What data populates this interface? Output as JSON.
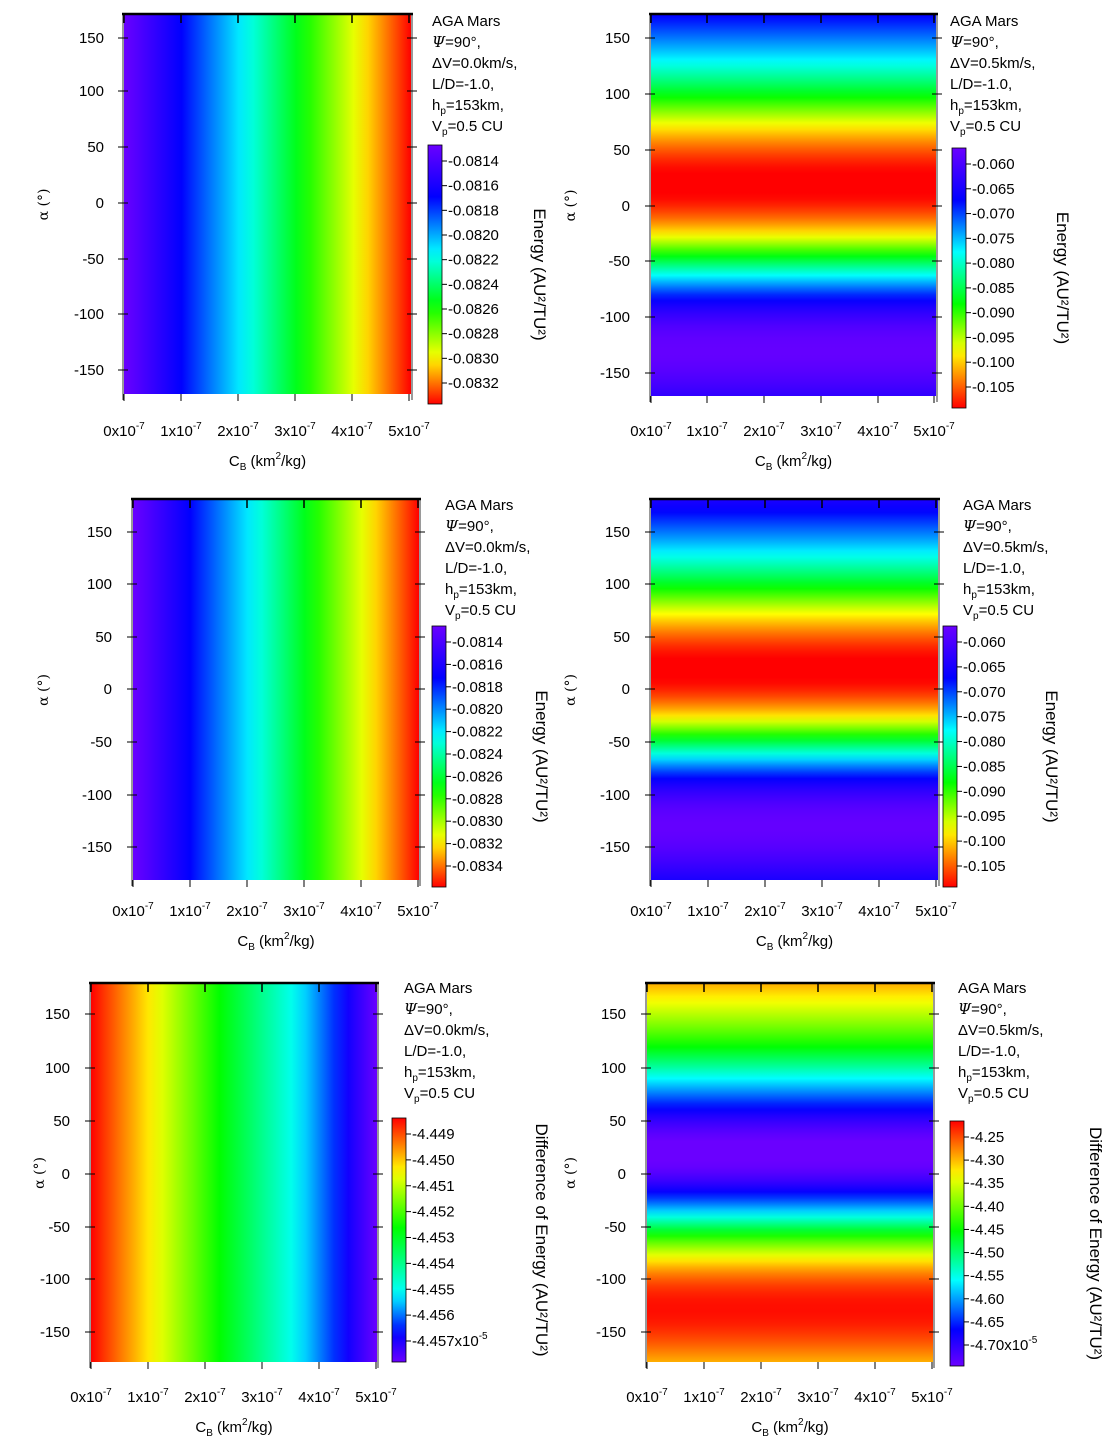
{
  "chart_data": [
    {
      "type": "heatmap",
      "vary": "x",
      "info": {
        "title": "AGA Mars",
        "psi": "=90°,",
        "dv": "ΔV=0.0km/s,",
        "ld": "L/D=-1.0,",
        "hp_base": "h",
        "hp_sub": "p",
        "hp_rest": "=153km,",
        "vp_base": "V",
        "vp_sub": "p",
        "vp_rest": "=0.5 CU"
      },
      "xticks": [
        "0x10",
        "1x10",
        "2x10",
        "3x10",
        "4x10",
        "5x10"
      ],
      "xtick_exp": "-7",
      "xlim": [
        0,
        5e-07
      ],
      "xlabel": {
        "pre": "C",
        "sub": "B",
        "mid": " (km",
        "sup": "2",
        "post": "/kg)"
      },
      "ylabel": "α (°)",
      "yticks": [
        150,
        100,
        50,
        0,
        -50,
        -100,
        -150
      ],
      "ylim": [
        -170,
        170
      ],
      "colorbar": {
        "ticks": [
          "-0.0814",
          "-0.0816",
          "-0.0818",
          "-0.0820",
          "-0.0822",
          "-0.0824",
          "-0.0826",
          "-0.0828",
          "-0.0830",
          "-0.0832"
        ],
        "label": "Energy (AU²/TU²)",
        "min": -0.08326,
        "max": -0.08128
      },
      "stops": [
        {
          "v": 0,
          "c": "#6a00ff"
        },
        {
          "v": 0.2,
          "c": "#0000ff"
        },
        {
          "v": 0.42,
          "c": "#00ffff"
        },
        {
          "v": 0.62,
          "c": "#00ff00"
        },
        {
          "v": 0.82,
          "c": "#ffff00"
        },
        {
          "v": 1,
          "c": "#ff0000"
        }
      ]
    },
    {
      "type": "heatmap",
      "vary": "y",
      "info": {
        "title": "AGA Mars",
        "psi": "=90°,",
        "dv": "ΔV=0.5km/s,",
        "ld": "L/D=-1.0,",
        "hp_base": "h",
        "hp_sub": "p",
        "hp_rest": "=153km,",
        "vp_base": "V",
        "vp_sub": "p",
        "vp_rest": "=0.5 CU"
      },
      "xticks": [
        "0x10",
        "1x10",
        "2x10",
        "3x10",
        "4x10",
        "5x10"
      ],
      "xtick_exp": "-7",
      "xlim": [
        0,
        5e-07
      ],
      "xlabel": {
        "pre": "C",
        "sub": "B",
        "mid": " (km",
        "sup": "2",
        "post": "/kg)"
      },
      "ylabel": "α (°)",
      "yticks": [
        150,
        100,
        50,
        0,
        -50,
        -100,
        -150
      ],
      "ylim": [
        -170,
        170
      ],
      "colorbar": {
        "ticks": [
          "-0.060",
          "-0.065",
          "-0.070",
          "-0.075",
          "-0.080",
          "-0.085",
          "-0.090",
          "-0.095",
          "-0.100",
          "-0.105"
        ],
        "label": "Energy (AU²/TU²)",
        "min": -0.1075,
        "max": -0.058
      },
      "stops": [
        {
          "v": 0,
          "c": "#6a00ff"
        },
        {
          "v": 0.2,
          "c": "#0000ff"
        },
        {
          "v": 0.4,
          "c": "#00ffff"
        },
        {
          "v": 0.6,
          "c": "#00ff00"
        },
        {
          "v": 0.78,
          "c": "#ffff00"
        },
        {
          "v": 1,
          "c": "#ff0000"
        }
      ]
    },
    {
      "type": "heatmap",
      "vary": "x",
      "info": {
        "title": "AGA Mars",
        "psi": "=90°,",
        "dv": "ΔV=0.0km/s,",
        "ld": "L/D=-1.0,",
        "hp_base": "h",
        "hp_sub": "p",
        "hp_rest": "=153km,",
        "vp_base": "V",
        "vp_sub": "p",
        "vp_rest": "=0.5 CU"
      },
      "xticks": [
        "0x10",
        "1x10",
        "2x10",
        "3x10",
        "4x10",
        "5x10"
      ],
      "xtick_exp": "-7",
      "xlim": [
        0,
        5e-07
      ],
      "xlabel": {
        "pre": "C",
        "sub": "B",
        "mid": " (km",
        "sup": "2",
        "post": "/kg)"
      },
      "ylabel": "α (°)",
      "yticks": [
        150,
        100,
        50,
        0,
        -50,
        -100,
        -150
      ],
      "ylim": [
        -180,
        180
      ],
      "colorbar": {
        "ticks": [
          "-0.0814",
          "-0.0816",
          "-0.0818",
          "-0.0820",
          "-0.0822",
          "-0.0824",
          "-0.0826",
          "-0.0828",
          "-0.0830",
          "-0.0832",
          "-0.0834"
        ],
        "label": "Energy (AU²/TU²)",
        "min": -0.08345,
        "max": -0.08128
      },
      "stops": [
        {
          "v": 0,
          "c": "#6a00ff"
        },
        {
          "v": 0.2,
          "c": "#0000ff"
        },
        {
          "v": 0.42,
          "c": "#00ffff"
        },
        {
          "v": 0.62,
          "c": "#00ff00"
        },
        {
          "v": 0.82,
          "c": "#ffff00"
        },
        {
          "v": 1,
          "c": "#ff0000"
        }
      ]
    },
    {
      "type": "heatmap",
      "vary": "y",
      "info": {
        "title": "AGA Mars",
        "psi": "=90°,",
        "dv": "ΔV=0.5km/s,",
        "ld": "L/D=-1.0,",
        "hp_base": "h",
        "hp_sub": "p",
        "hp_rest": "=153km,",
        "vp_base": "V",
        "vp_sub": "p",
        "vp_rest": "=0.5 CU"
      },
      "xticks": [
        "0x10",
        "1x10",
        "2x10",
        "3x10",
        "4x10",
        "5x10"
      ],
      "xtick_exp": "-7",
      "xlim": [
        0,
        5e-07
      ],
      "xlabel": {
        "pre": "C",
        "sub": "B",
        "mid": " (km",
        "sup": "2",
        "post": "/kg)"
      },
      "ylabel": "α (°)",
      "yticks": [
        150,
        100,
        50,
        0,
        -50,
        -100,
        -150
      ],
      "ylim": [
        -180,
        180
      ],
      "colorbar": {
        "ticks": [
          "-0.060",
          "-0.065",
          "-0.070",
          "-0.075",
          "-0.080",
          "-0.085",
          "-0.090",
          "-0.095",
          "-0.100",
          "-0.105"
        ],
        "label": "Energy (AU²/TU²)",
        "min": -0.1075,
        "max": -0.058
      },
      "stops": [
        {
          "v": 0,
          "c": "#6a00ff"
        },
        {
          "v": 0.2,
          "c": "#0000ff"
        },
        {
          "v": 0.4,
          "c": "#00ffff"
        },
        {
          "v": 0.6,
          "c": "#00ff00"
        },
        {
          "v": 0.78,
          "c": "#ffff00"
        },
        {
          "v": 1,
          "c": "#ff0000"
        }
      ]
    },
    {
      "type": "heatmap",
      "vary": "x",
      "info": {
        "title": "AGA Mars",
        "psi": "=90°,",
        "dv": "ΔV=0.0km/s,",
        "ld": "L/D=-1.0,",
        "hp_base": "h",
        "hp_sub": "p",
        "hp_rest": "=153km,",
        "vp_base": "V",
        "vp_sub": "p",
        "vp_rest": "=0.5 CU"
      },
      "xticks": [
        "0x10",
        "1x10",
        "2x10",
        "3x10",
        "4x10",
        "5x10"
      ],
      "xtick_exp": "-7",
      "xlim": [
        0,
        5e-07
      ],
      "xlabel": {
        "pre": "C",
        "sub": "B",
        "mid": " (km",
        "sup": "2",
        "post": "/kg)"
      },
      "ylabel": "α (°)",
      "yticks": [
        150,
        100,
        50,
        0,
        -50,
        -100,
        -150
      ],
      "ylim": [
        -180,
        180
      ],
      "colorbar": {
        "ticks": [
          "-4.449",
          "-4.450",
          "-4.451",
          "-4.452",
          "-4.453",
          "-4.454",
          "-4.455",
          "-4.456",
          "-4.457x10"
        ],
        "last_exp": "-5",
        "label": "Difference of Energy (AU²/TU²)",
        "min": -4.4575,
        "max": -4.4487
      },
      "stops": [
        {
          "v": 0,
          "c": "#ff0000"
        },
        {
          "v": 0.22,
          "c": "#ffff00"
        },
        {
          "v": 0.45,
          "c": "#00ff00"
        },
        {
          "v": 0.72,
          "c": "#00ffff"
        },
        {
          "v": 0.88,
          "c": "#0000ff"
        },
        {
          "v": 1,
          "c": "#6a00ff"
        }
      ]
    },
    {
      "type": "heatmap",
      "vary": "y",
      "info": {
        "title": "AGA Mars",
        "psi": "=90°,",
        "dv": "ΔV=0.5km/s,",
        "ld": "L/D=-1.0,",
        "hp_base": "h",
        "hp_sub": "p",
        "hp_rest": "=153km,",
        "vp_base": "V",
        "vp_sub": "p",
        "vp_rest": "=0.5 CU"
      },
      "xticks": [
        "0x10",
        "1x10",
        "2x10",
        "3x10",
        "4x10",
        "5x10"
      ],
      "xtick_exp": "-7",
      "xlim": [
        0,
        5e-07
      ],
      "xlabel": {
        "pre": "C",
        "sub": "B",
        "mid": " (km",
        "sup": "2",
        "post": "/kg)"
      },
      "ylabel": "α (°)",
      "yticks": [
        150,
        100,
        50,
        0,
        -50,
        -100,
        -150
      ],
      "ylim": [
        -180,
        180
      ],
      "colorbar": {
        "ticks": [
          "-4.25",
          "-4.30",
          "-4.35",
          "-4.40",
          "-4.45",
          "-4.50",
          "-4.55",
          "-4.60",
          "-4.65",
          "-4.70x10"
        ],
        "last_exp": "-5",
        "label": "Difference of Energy (AU²/TU²)",
        "min": -4.72,
        "max": -4.23
      },
      "stops": [
        {
          "v": 0,
          "c": "#ff0000"
        },
        {
          "v": 0.22,
          "c": "#ffff00"
        },
        {
          "v": 0.45,
          "c": "#00ff00"
        },
        {
          "v": 0.65,
          "c": "#00ffff"
        },
        {
          "v": 0.85,
          "c": "#0000ff"
        },
        {
          "v": 1,
          "c": "#6a00ff"
        }
      ]
    }
  ]
}
